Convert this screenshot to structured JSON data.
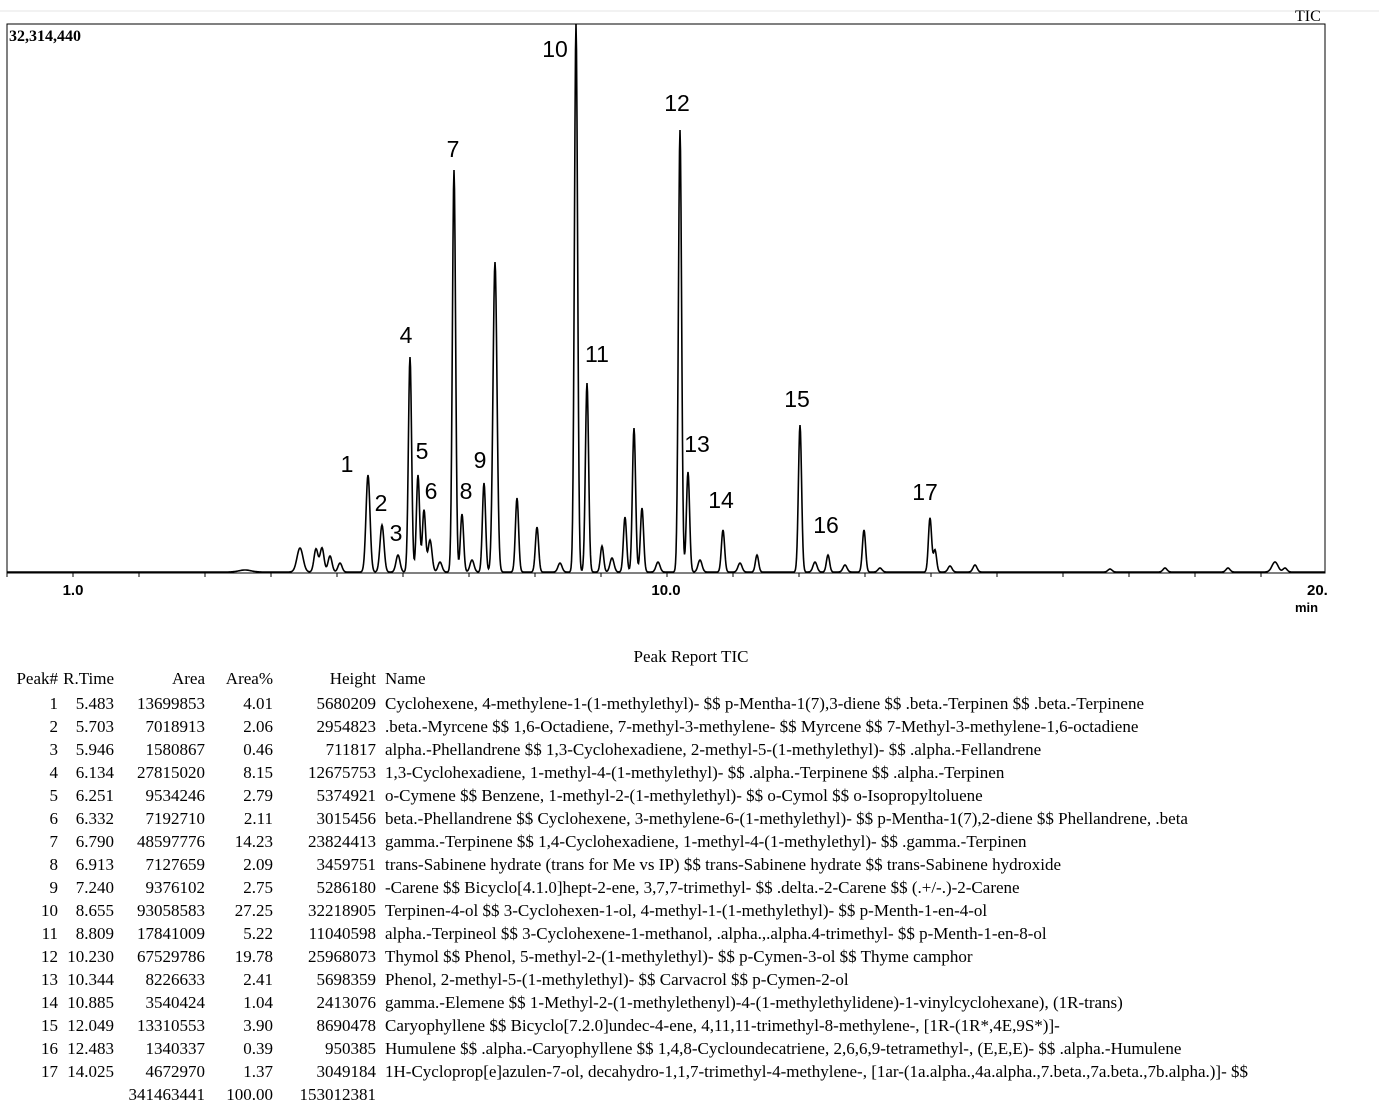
{
  "chromatogram": {
    "max_label": "32,314,440",
    "trace_label": "TIC",
    "x_labels": [
      "1.0",
      "10.0",
      "20.",
      "min"
    ],
    "peak_labels": [
      "1",
      "2",
      "3",
      "4",
      "5",
      "6",
      "7",
      "8",
      "9",
      "10",
      "11",
      "12",
      "13",
      "14",
      "15",
      "16",
      "17"
    ]
  },
  "report": {
    "title": "Peak Report TIC",
    "headers": [
      "Peak#",
      "R.Time",
      "Area",
      "Area%",
      "Height",
      "Name"
    ],
    "rows": [
      [
        "1",
        "5.483",
        "13699853",
        "4.01",
        "5680209",
        "Cyclohexene, 4-methylene-1-(1-methylethyl)- $$ p-Mentha-1(7),3-diene $$ .beta.-Terpinen $$ .beta.-Terpinene"
      ],
      [
        "2",
        "5.703",
        "7018913",
        "2.06",
        "2954823",
        ".beta.-Myrcene $$ 1,6-Octadiene, 7-methyl-3-methylene- $$ Myrcene $$ 7-Methyl-3-methylene-1,6-octadiene"
      ],
      [
        "3",
        "5.946",
        "1580867",
        "0.46",
        "711817",
        "alpha.-Phellandrene $$ 1,3-Cyclohexadiene, 2-methyl-5-(1-methylethyl)- $$ .alpha.-Fellandrene"
      ],
      [
        "4",
        "6.134",
        "27815020",
        "8.15",
        "12675753",
        "1,3-Cyclohexadiene, 1-methyl-4-(1-methylethyl)- $$ .alpha.-Terpinene $$ .alpha.-Terpinen"
      ],
      [
        "5",
        "6.251",
        "9534246",
        "2.79",
        "5374921",
        "o-Cymene $$ Benzene, 1-methyl-2-(1-methylethyl)- $$ o-Cymol $$ o-Isopropyltoluene"
      ],
      [
        "6",
        "6.332",
        "7192710",
        "2.11",
        "3015456",
        "beta.-Phellandrene $$ Cyclohexene, 3-methylene-6-(1-methylethyl)- $$ p-Mentha-1(7),2-diene $$ Phellandrene, .beta"
      ],
      [
        "7",
        "6.790",
        "48597776",
        "14.23",
        "23824413",
        "gamma.-Terpinene $$ 1,4-Cyclohexadiene, 1-methyl-4-(1-methylethyl)- $$ .gamma.-Terpinen"
      ],
      [
        "8",
        "6.913",
        "7127659",
        "2.09",
        "3459751",
        "trans-Sabinene hydrate (trans for Me vs IP) $$ trans-Sabinene hydrate $$ trans-Sabinene hydroxide"
      ],
      [
        "9",
        "7.240",
        "9376102",
        "2.75",
        "5286180",
        "-Carene $$ Bicyclo[4.1.0]hept-2-ene, 3,7,7-trimethyl- $$ .delta.-2-Carene $$ (.+/-.)-2-Carene"
      ],
      [
        "10",
        "8.655",
        "93058583",
        "27.25",
        "32218905",
        "Terpinen-4-ol $$ 3-Cyclohexen-1-ol, 4-methyl-1-(1-methylethyl)- $$ p-Menth-1-en-4-ol"
      ],
      [
        "11",
        "8.809",
        "17841009",
        "5.22",
        "11040598",
        "alpha.-Terpineol $$ 3-Cyclohexene-1-methanol, .alpha.,.alpha.4-trimethyl- $$ p-Menth-1-en-8-ol"
      ],
      [
        "12",
        "10.230",
        "67529786",
        "19.78",
        "25968073",
        "Thymol $$ Phenol, 5-methyl-2-(1-methylethyl)- $$ p-Cymen-3-ol $$ Thyme camphor"
      ],
      [
        "13",
        "10.344",
        "8226633",
        "2.41",
        "5698359",
        "Phenol, 2-methyl-5-(1-methylethyl)- $$ Carvacrol $$ p-Cymen-2-ol"
      ],
      [
        "14",
        "10.885",
        "3540424",
        "1.04",
        "2413076",
        "gamma.-Elemene $$ 1-Methyl-2-(1-methylethenyl)-4-(1-methylethylidene)-1-vinylcyclohexane), (1R-trans)"
      ],
      [
        "15",
        "12.049",
        "13310553",
        "3.90",
        "8690478",
        "Caryophyllene $$ Bicyclo[7.2.0]undec-4-ene, 4,11,11-trimethyl-8-methylene-, [1R-(1R*,4E,9S*)]-"
      ],
      [
        "16",
        "12.483",
        "1340337",
        "0.39",
        "950385",
        "Humulene $$ .alpha.-Caryophyllene $$ 1,4,8-Cycloundecatriene, 2,6,6,9-tetramethyl-, (E,E,E)- $$ .alpha.-Humulene"
      ],
      [
        "17",
        "14.025",
        "4672970",
        "1.37",
        "3049184",
        "1H-Cycloprop[e]azulen-7-ol, decahydro-1,1,7-trimethyl-4-methylene-, [1ar-(1a.alpha.,4a.alpha.,7.beta.,7a.beta.,7b.alpha.)]- $$"
      ]
    ],
    "totals": [
      "341463441",
      "100.00",
      "153012381"
    ]
  }
}
